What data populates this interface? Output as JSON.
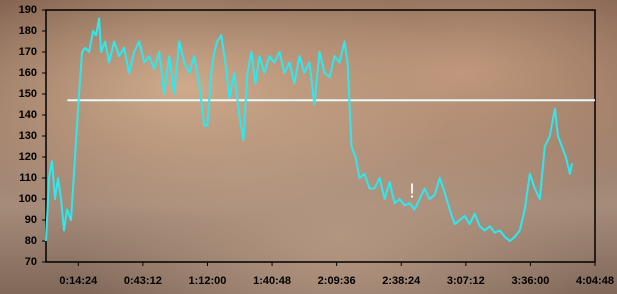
{
  "chart_data": {
    "type": "line",
    "annotation": "!",
    "color": "#2ee8f0",
    "reference_line": 147,
    "reference_color": "#e8fafa",
    "grid": false,
    "xlim": [
      0,
      14688
    ],
    "xticks": [
      {
        "value": 864,
        "label": "0:14:24"
      },
      {
        "value": 2592,
        "label": "0:43:12"
      },
      {
        "value": 4320,
        "label": "1:12:00"
      },
      {
        "value": 6048,
        "label": "1:40:48"
      },
      {
        "value": 7776,
        "label": "2:09:36"
      },
      {
        "value": 9504,
        "label": "2:38:24"
      },
      {
        "value": 11232,
        "label": "3:07:12"
      },
      {
        "value": 12960,
        "label": "3:36:00"
      },
      {
        "value": 14688,
        "label": "4:04:48"
      }
    ],
    "ylim": [
      70,
      190
    ],
    "yticks": [
      70,
      80,
      90,
      100,
      110,
      120,
      130,
      140,
      150,
      160,
      170,
      180,
      190
    ],
    "x": [
      0,
      80,
      161,
      241,
      322,
      402,
      482,
      563,
      670,
      777,
      884,
      965,
      1045,
      1152,
      1259,
      1340,
      1420,
      1474,
      1581,
      1688,
      1822,
      1956,
      2090,
      2224,
      2358,
      2492,
      2626,
      2760,
      2894,
      3028,
      3162,
      3296,
      3430,
      3564,
      3698,
      3832,
      3966,
      4100,
      4234,
      4315,
      4422,
      4502,
      4583,
      4690,
      4797,
      4904,
      5038,
      5172,
      5280,
      5387,
      5494,
      5601,
      5708,
      5842,
      5976,
      6110,
      6244,
      6378,
      6512,
      6646,
      6780,
      6914,
      7048,
      7182,
      7316,
      7450,
      7584,
      7718,
      7852,
      7986,
      8067,
      8174,
      8281,
      8388,
      8522,
      8656,
      8790,
      8924,
      9058,
      9192,
      9326,
      9460,
      9594,
      9728,
      9862,
      9996,
      10130,
      10264,
      10398,
      10532,
      10666,
      10800,
      10934,
      11068,
      11202,
      11336,
      11470,
      11604,
      11738,
      11872,
      12006,
      12140,
      12274,
      12408,
      12542,
      12676,
      12810,
      12944,
      13078,
      13212,
      13346,
      13480,
      13614,
      13695,
      13802,
      13909,
      14016,
      14070
    ],
    "values": [
      80,
      110,
      118,
      100,
      110,
      100,
      85,
      95,
      90,
      120,
      150,
      170,
      172,
      170,
      180,
      178,
      186,
      170,
      175,
      165,
      175,
      168,
      172,
      160,
      170,
      175,
      165,
      168,
      162,
      170,
      150,
      168,
      150,
      175,
      165,
      160,
      168,
      155,
      135,
      135,
      160,
      170,
      175,
      178,
      165,
      148,
      160,
      140,
      128,
      160,
      170,
      155,
      168,
      160,
      168,
      165,
      170,
      160,
      165,
      155,
      168,
      160,
      165,
      145,
      170,
      160,
      158,
      168,
      165,
      175,
      165,
      125,
      120,
      110,
      112,
      105,
      105,
      110,
      100,
      108,
      98,
      100,
      97,
      98,
      95,
      100,
      105,
      100,
      102,
      110,
      103,
      95,
      88,
      90,
      92,
      88,
      93,
      87,
      85,
      87,
      84,
      85,
      82,
      80,
      82,
      85,
      95,
      112,
      105,
      100,
      125,
      130,
      143,
      130,
      125,
      120,
      112,
      117
    ]
  }
}
